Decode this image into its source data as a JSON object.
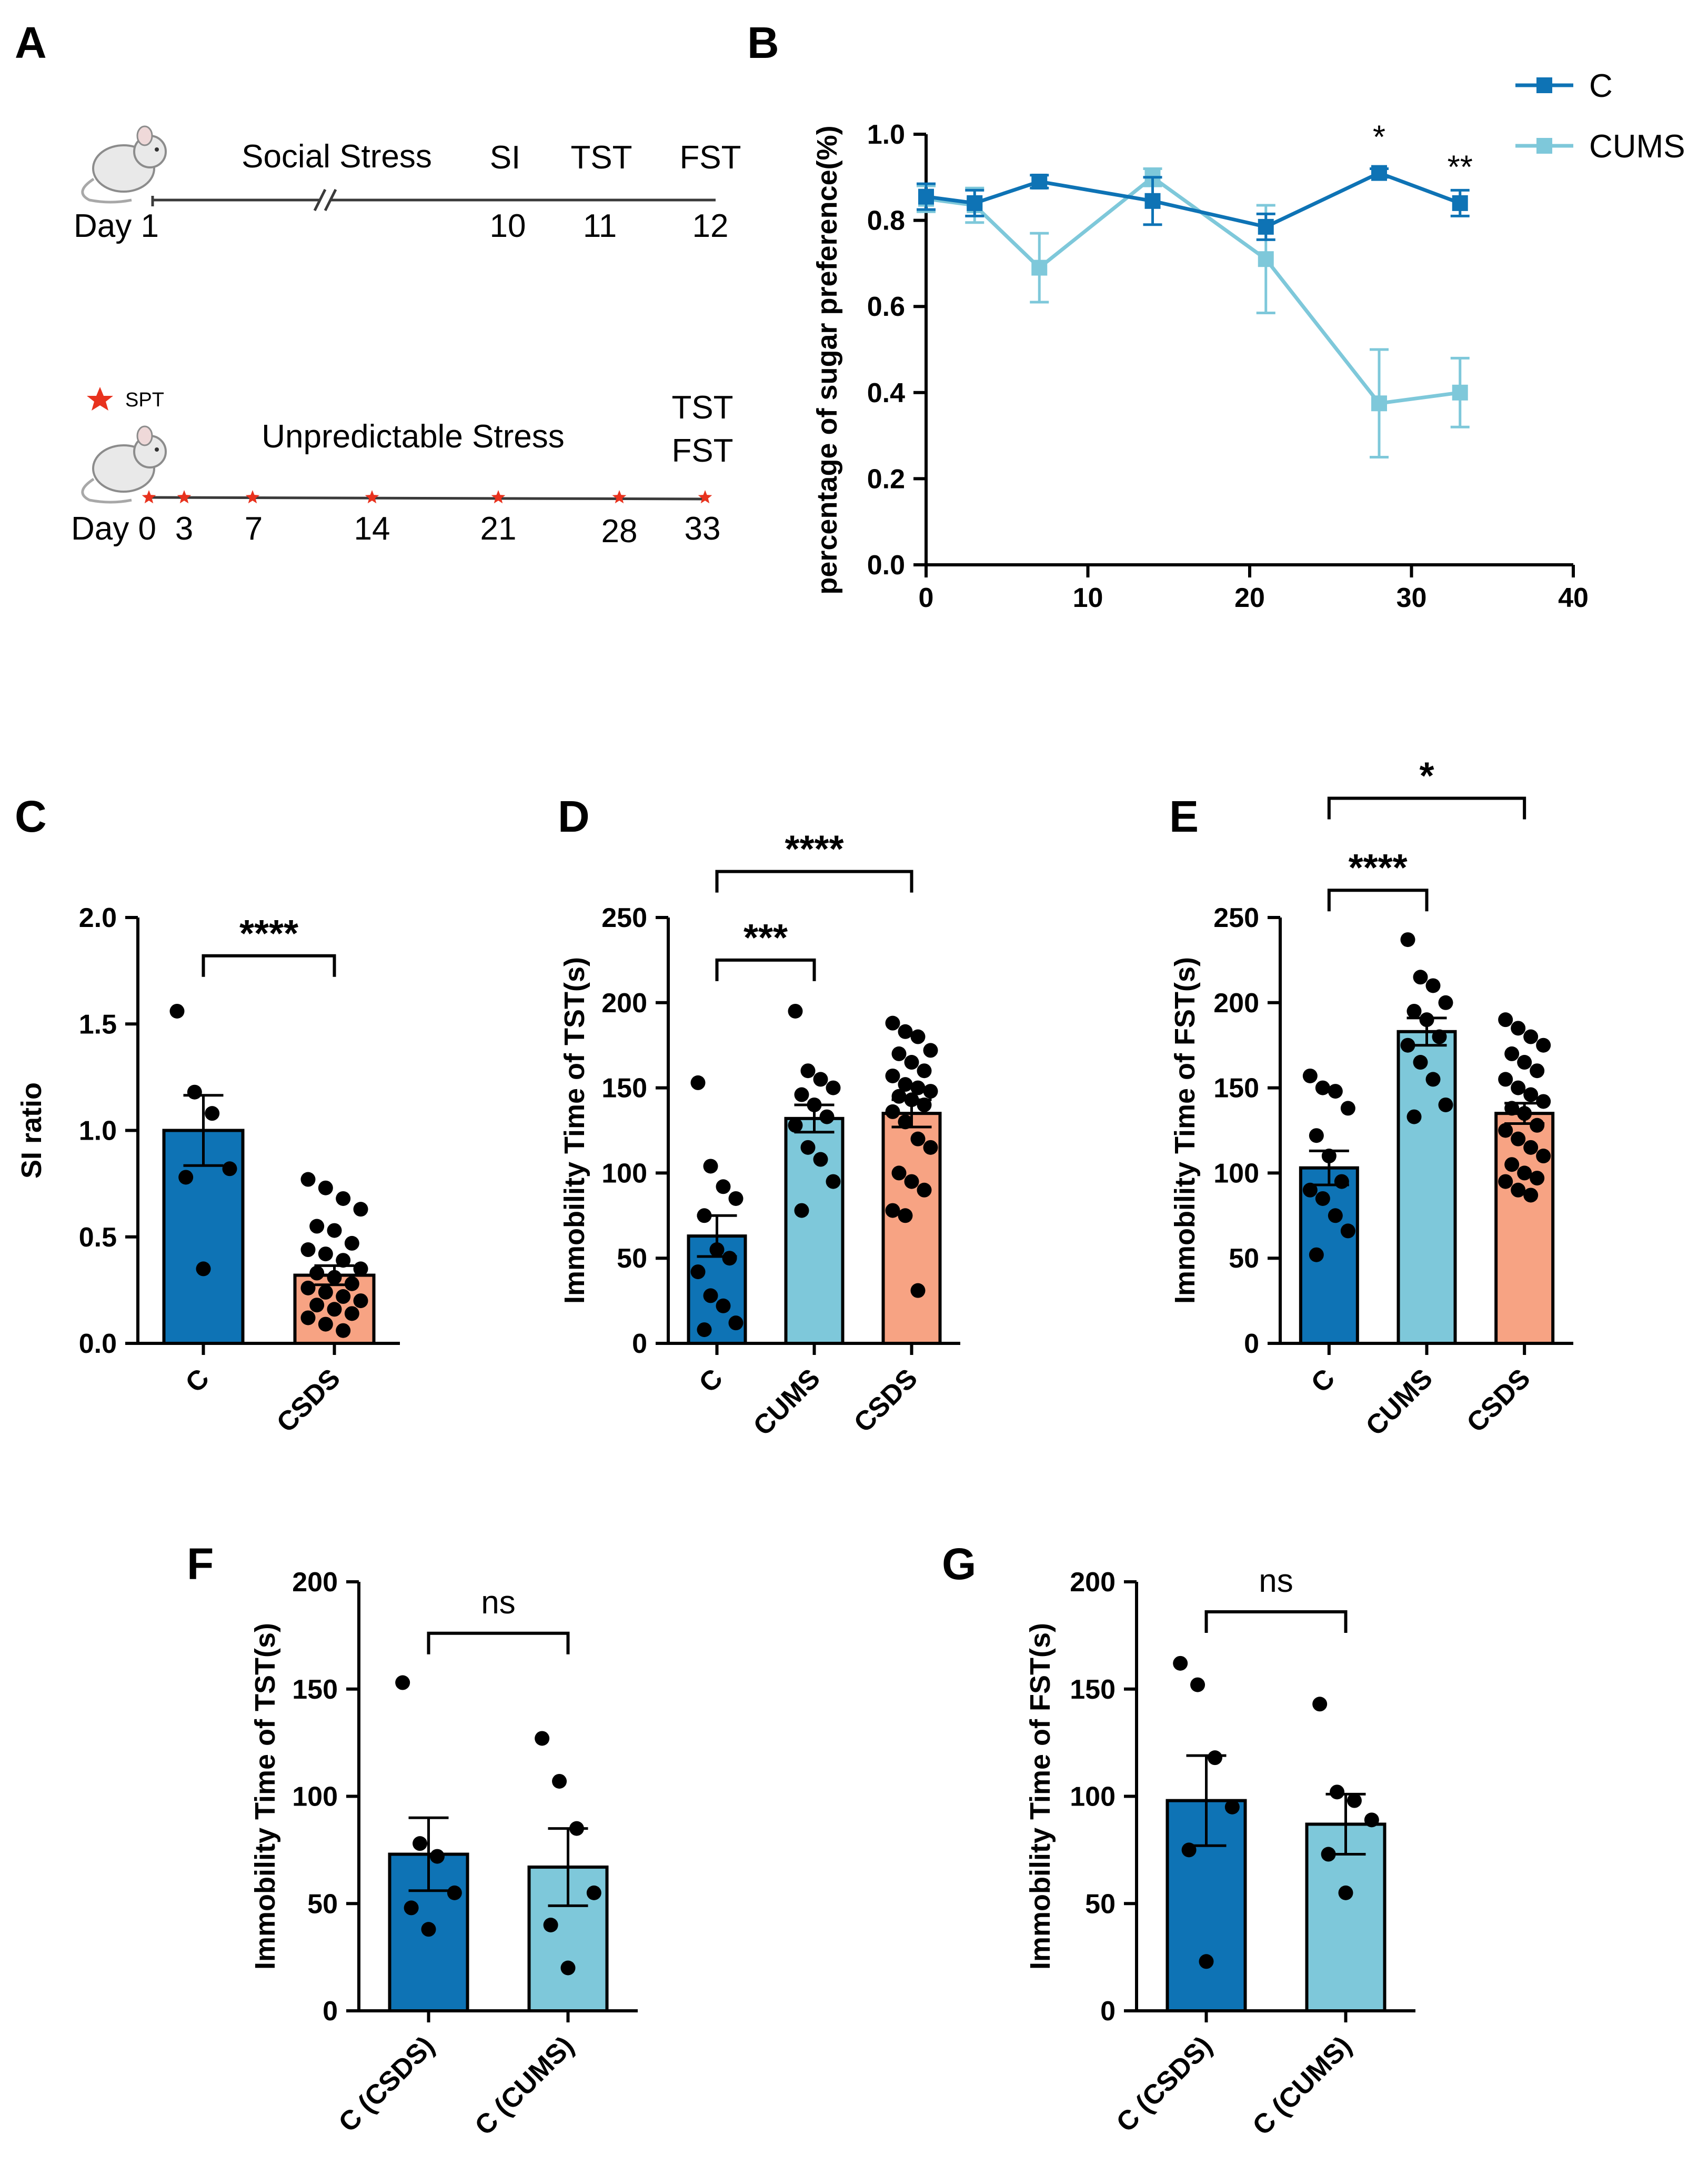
{
  "colors": {
    "c": "#0e73b5",
    "cums": "#7ec8da",
    "csds": "#f7a383",
    "axis": "#000000",
    "star": "#e8321e",
    "line": "#3a3a3a"
  },
  "panel_a": {
    "letter": "A",
    "social": {
      "title": "Social Stress",
      "day_label": "Day 1",
      "ticks": [
        {
          "label": "10"
        },
        {
          "label": "11"
        },
        {
          "label": "12"
        }
      ],
      "tests": [
        {
          "label": "SI"
        },
        {
          "label": "TST"
        },
        {
          "label": "FST"
        }
      ]
    },
    "unpredictable": {
      "title": "Unpredictable Stress",
      "spt_label": "SPT",
      "day_label": "Day 0",
      "ticks": [
        {
          "label": "3"
        },
        {
          "label": "7"
        },
        {
          "label": "14"
        },
        {
          "label": "21"
        },
        {
          "label": "28"
        },
        {
          "label": "33"
        }
      ],
      "tests": [
        {
          "label": "TST"
        },
        {
          "label": "FST"
        }
      ]
    }
  },
  "chart_data": [
    {
      "id": "B",
      "letter": "B",
      "type": "line",
      "ylabel": "percentage of sugar preference(%)",
      "xlabel": "",
      "xlim": [
        0,
        40
      ],
      "ylim": [
        0,
        1.0
      ],
      "xticks": [
        0,
        10,
        20,
        30,
        40
      ],
      "yticks": [
        0.0,
        0.2,
        0.4,
        0.6,
        0.8,
        1.0
      ],
      "series": [
        {
          "name": "C",
          "color": "#0e73b5",
          "points": [
            {
              "x": 0,
              "y": 0.855,
              "err": 0.03
            },
            {
              "x": 3,
              "y": 0.84,
              "err": 0.03
            },
            {
              "x": 7,
              "y": 0.89,
              "err": 0.015
            },
            {
              "x": 14,
              "y": 0.845,
              "err": 0.055
            },
            {
              "x": 21,
              "y": 0.785,
              "err": 0.03
            },
            {
              "x": 28,
              "y": 0.91,
              "err": 0.01
            },
            {
              "x": 33,
              "y": 0.84,
              "err": 0.03
            }
          ]
        },
        {
          "name": "CUMS",
          "color": "#7ec8da",
          "points": [
            {
              "x": 0,
              "y": 0.85,
              "err": 0.03
            },
            {
              "x": 3,
              "y": 0.835,
              "err": 0.04
            },
            {
              "x": 7,
              "y": 0.69,
              "err": 0.08
            },
            {
              "x": 14,
              "y": 0.9,
              "err": 0.02
            },
            {
              "x": 21,
              "y": 0.71,
              "err": 0.125
            },
            {
              "x": 28,
              "y": 0.375,
              "err": 0.125
            },
            {
              "x": 33,
              "y": 0.4,
              "err": 0.08
            }
          ]
        }
      ],
      "annotations": [
        {
          "x": 28,
          "y": 0.98,
          "text": "*"
        },
        {
          "x": 33,
          "y": 0.91,
          "text": "**"
        }
      ]
    },
    {
      "id": "C",
      "letter": "C",
      "type": "bar",
      "ylabel": "SI ratio",
      "ylim": [
        0,
        2.0
      ],
      "yticks": [
        0.0,
        0.5,
        1.0,
        1.5,
        2.0
      ],
      "categories": [
        "C",
        "CSDS"
      ],
      "values": [
        1.0,
        0.32
      ],
      "errors": [
        0.165,
        0.045
      ],
      "bar_colors": [
        "#0e73b5",
        "#f7a383"
      ],
      "points": [
        [
          1.56,
          1.18,
          1.08,
          0.82,
          0.78,
          0.35
        ],
        [
          0.77,
          0.73,
          0.68,
          0.63,
          0.55,
          0.53,
          0.47,
          0.44,
          0.42,
          0.39,
          0.35,
          0.33,
          0.31,
          0.28,
          0.26,
          0.24,
          0.22,
          0.2,
          0.18,
          0.16,
          0.14,
          0.12,
          0.09,
          0.06
        ]
      ],
      "brackets": [
        {
          "from": 0,
          "to": 1,
          "y": 1.82,
          "text": "****"
        }
      ]
    },
    {
      "id": "D",
      "letter": "D",
      "type": "bar",
      "ylabel": "Immobility Time of TST(s)",
      "ylim": [
        0,
        250
      ],
      "yticks": [
        0,
        50,
        100,
        150,
        200,
        250
      ],
      "categories": [
        "C",
        "CUMS",
        "CSDS"
      ],
      "values": [
        63,
        132,
        135
      ],
      "errors": [
        12,
        8,
        8
      ],
      "bar_colors": [
        "#0e73b5",
        "#7ec8da",
        "#f7a383"
      ],
      "points": [
        [
          153,
          104,
          92,
          85,
          75,
          55,
          50,
          42,
          28,
          22,
          12,
          8
        ],
        [
          195,
          160,
          155,
          150,
          146,
          140,
          133,
          128,
          115,
          108,
          95,
          78
        ],
        [
          188,
          183,
          180,
          172,
          170,
          165,
          160,
          157,
          152,
          150,
          148,
          145,
          143,
          140,
          136,
          130,
          120,
          115,
          100,
          95,
          90,
          78,
          75,
          31
        ]
      ],
      "brackets": [
        {
          "from": 0,
          "to": 1,
          "y": 225,
          "text": "***"
        },
        {
          "from": 0,
          "to": 2,
          "y": 277,
          "text": "****"
        }
      ]
    },
    {
      "id": "E",
      "letter": "E",
      "type": "bar",
      "ylabel": "Immobility Time of FST(s)",
      "ylim": [
        0,
        250
      ],
      "yticks": [
        0,
        50,
        100,
        150,
        200,
        250
      ],
      "categories": [
        "C",
        "CUMS",
        "CSDS"
      ],
      "values": [
        103,
        183,
        135
      ],
      "errors": [
        10,
        8,
        6
      ],
      "bar_colors": [
        "#0e73b5",
        "#7ec8da",
        "#f7a383"
      ],
      "points": [
        [
          157,
          150,
          148,
          138,
          122,
          110,
          95,
          90,
          85,
          75,
          66,
          52
        ],
        [
          237,
          215,
          210,
          200,
          195,
          190,
          180,
          175,
          165,
          155,
          140,
          133
        ],
        [
          190,
          185,
          180,
          175,
          170,
          165,
          160,
          155,
          150,
          146,
          142,
          138,
          135,
          128,
          125,
          120,
          115,
          110,
          105,
          100,
          97,
          95,
          90,
          87
        ]
      ],
      "brackets": [
        {
          "from": 0,
          "to": 1,
          "y": 266,
          "text": "****"
        },
        {
          "from": 0,
          "to": 2,
          "y": 320,
          "text": "*"
        }
      ]
    },
    {
      "id": "F",
      "letter": "F",
      "type": "bar",
      "ylabel": "Immobility Time of TST(s)",
      "ylim": [
        0,
        200
      ],
      "yticks": [
        0,
        50,
        100,
        150,
        200
      ],
      "categories": [
        "C (CSDS)",
        "C (CUMS)"
      ],
      "values": [
        73,
        67
      ],
      "errors": [
        17,
        18
      ],
      "bar_colors": [
        "#0e73b5",
        "#7ec8da"
      ],
      "points": [
        [
          153,
          78,
          72,
          55,
          48,
          38
        ],
        [
          127,
          107,
          85,
          55,
          40,
          20
        ]
      ],
      "brackets": [
        {
          "from": 0,
          "to": 1,
          "y": 176,
          "text": "ns"
        }
      ]
    },
    {
      "id": "G",
      "letter": "G",
      "type": "bar",
      "ylabel": "Immobility Time of FST(s)",
      "ylim": [
        0,
        200
      ],
      "yticks": [
        0,
        50,
        100,
        150,
        200
      ],
      "categories": [
        "C (CSDS)",
        "C (CUMS)"
      ],
      "values": [
        98,
        87
      ],
      "errors": [
        21,
        14
      ],
      "bar_colors": [
        "#0e73b5",
        "#7ec8da"
      ],
      "points": [
        [
          162,
          152,
          118,
          95,
          75,
          23
        ],
        [
          143,
          102,
          98,
          89,
          73,
          55
        ]
      ],
      "brackets": [
        {
          "from": 0,
          "to": 1,
          "y": 186,
          "text": "ns"
        }
      ]
    }
  ]
}
